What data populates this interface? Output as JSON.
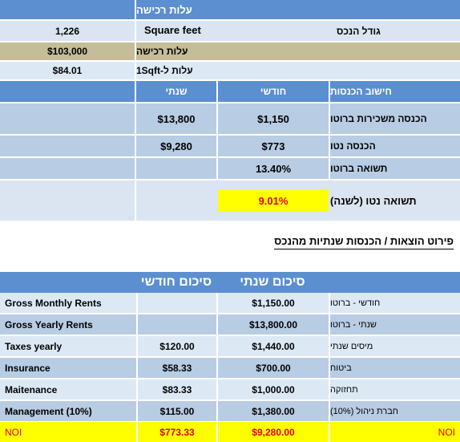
{
  "top_table": {
    "acquisition_header": "עלות רכישה",
    "property_size_label": "גודל הנכס",
    "property_size_value": "1,226",
    "property_size_unit": "Square feet",
    "acquisition_cost_label": "עלות רכישה",
    "acquisition_cost_value": "$103,000",
    "cost_per_sqft_label": "עלות ל-1Sqft",
    "cost_per_sqft_value": "$84.01",
    "income_header": "חישוב הכנסות",
    "col_monthly": "חודשי",
    "col_yearly": "שנתי",
    "gross_rent_label": "הכנסה משכירות ברוטו",
    "gross_rent_monthly": "$1,150",
    "gross_rent_yearly": "$13,800",
    "net_income_label": "הכנסה נטו",
    "net_income_monthly": "$773",
    "net_income_yearly": "$9,280",
    "gross_return_label": "תשואה ברוטו",
    "gross_return_value": "13.40%",
    "net_return_label": "תשואה נטו (לשנה)",
    "net_return_value": "9.01%"
  },
  "section_title": "פירוט הוצאות / הכנסות שנתיות מהנכס",
  "bottom_table": {
    "header_yearly": "סיכום שנתי",
    "header_monthly": "סיכום חודשי",
    "rows": [
      {
        "en": "Gross Monthly Rents",
        "monthly": "",
        "yearly": "$1,150.00",
        "he": "חודשי - ברוטו"
      },
      {
        "en": "Gross Yearly Rents",
        "monthly": "",
        "yearly": "$13,800.00",
        "he": "שנתי - ברוטו"
      },
      {
        "en": "Taxes yearly",
        "monthly": "$120.00",
        "yearly": "$1,440.00",
        "he": "מיסים שנתי"
      },
      {
        "en": "Insurance",
        "monthly": "$58.33",
        "yearly": "$700.00",
        "he": "ביטוח"
      },
      {
        "en": "Maitenance",
        "monthly": "$83.33",
        "yearly": "$1,000.00",
        "he": "תחזוקה"
      },
      {
        "en": "Management (10%)",
        "monthly": "$115.00",
        "yearly": "$1,380.00",
        "he": "חברת ניהול (10%)"
      },
      {
        "en": "NOI",
        "monthly": "$773.33",
        "yearly": "$9,280.00",
        "he": "NOI"
      }
    ]
  },
  "colors": {
    "header_blue": "#5b8fd0",
    "highlight_yellow": "#ffff00",
    "noi_red": "#e0001a"
  }
}
